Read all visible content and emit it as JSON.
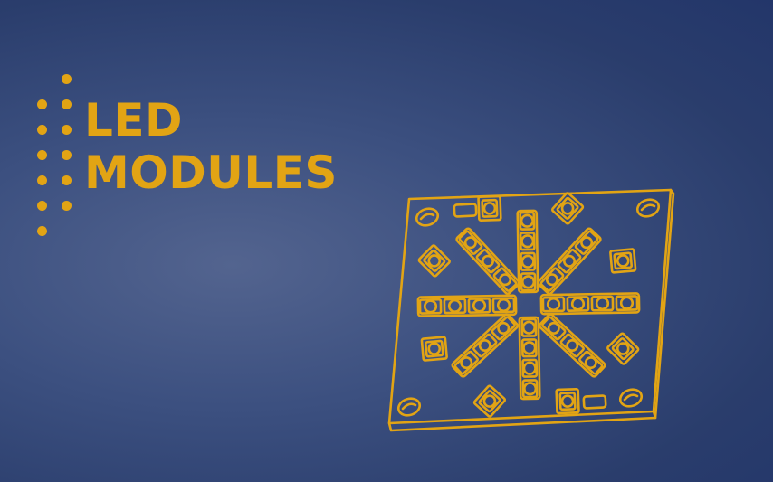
{
  "headline": {
    "line1": "LED",
    "line2": "MODULES"
  },
  "colors": {
    "accent": "#e2a414",
    "background": "#33477a"
  },
  "decorations": {
    "dot_pattern_icon": "dot-grid-icon",
    "illustration_icon": "led-module-board-icon"
  }
}
